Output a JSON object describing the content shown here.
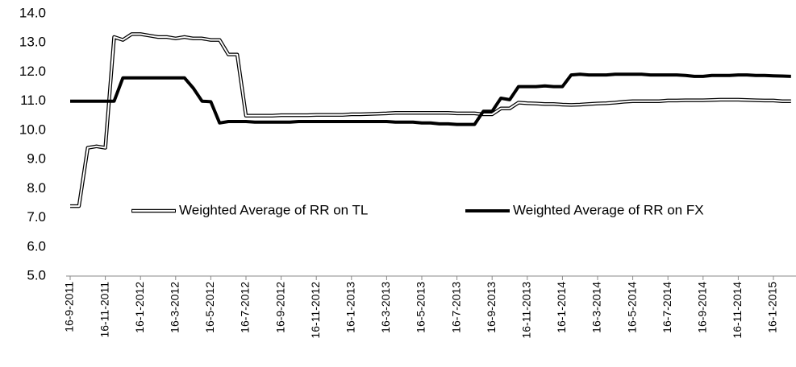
{
  "chart_data": {
    "type": "line",
    "categories": [
      "16-9-2011",
      null,
      null,
      null,
      "16-11-2011",
      null,
      null,
      null,
      "16-1-2012",
      null,
      null,
      null,
      "16-3-2012",
      null,
      null,
      null,
      "16-5-2012",
      null,
      null,
      null,
      "16-7-2012",
      null,
      null,
      null,
      "16-9-2012",
      null,
      null,
      null,
      "16-11-2012",
      null,
      null,
      null,
      "16-1-2013",
      null,
      null,
      null,
      "16-3-2013",
      null,
      null,
      null,
      "16-5-2013",
      null,
      null,
      null,
      "16-7-2013",
      null,
      null,
      null,
      "16-9-2013",
      null,
      null,
      null,
      "16-11-2013",
      null,
      null,
      null,
      "16-1-2014",
      null,
      null,
      null,
      "16-3-2014",
      null,
      null,
      null,
      "16-5-2014",
      null,
      null,
      null,
      "16-7-2014",
      null,
      null,
      null,
      "16-9-2014",
      null,
      null,
      null,
      "16-11-2014",
      null,
      null,
      null,
      "16-1-2015",
      null,
      null
    ],
    "series": [
      {
        "name": "Weighted Average of RR on TL",
        "color": "#000000",
        "style": "double",
        "values": [
          7.4,
          7.4,
          9.4,
          9.45,
          9.4,
          13.2,
          13.1,
          13.3,
          13.3,
          13.25,
          13.2,
          13.2,
          13.15,
          13.2,
          13.15,
          13.15,
          13.1,
          13.1,
          12.6,
          12.6,
          10.5,
          10.5,
          10.5,
          10.5,
          10.52,
          10.52,
          10.52,
          10.52,
          10.53,
          10.53,
          10.53,
          10.53,
          10.55,
          10.55,
          10.56,
          10.57,
          10.58,
          10.6,
          10.6,
          10.6,
          10.6,
          10.6,
          10.6,
          10.6,
          10.58,
          10.58,
          10.58,
          10.55,
          10.55,
          10.75,
          10.75,
          10.95,
          10.93,
          10.92,
          10.9,
          10.9,
          10.88,
          10.87,
          10.88,
          10.9,
          10.92,
          10.93,
          10.95,
          10.98,
          11.0,
          11.0,
          11.0,
          11.0,
          11.02,
          11.02,
          11.03,
          11.03,
          11.03,
          11.04,
          11.05,
          11.05,
          11.05,
          11.04,
          11.03,
          11.02,
          11.02,
          11.0,
          11.0
        ]
      },
      {
        "name": "Weighted Average of RR on FX",
        "color": "#000000",
        "style": "solid",
        "values": [
          11.0,
          11.0,
          11.0,
          11.0,
          11.0,
          11.0,
          11.8,
          11.8,
          11.8,
          11.8,
          11.8,
          11.8,
          11.8,
          11.8,
          11.45,
          11.0,
          10.98,
          10.25,
          10.3,
          10.3,
          10.3,
          10.28,
          10.28,
          10.28,
          10.28,
          10.28,
          10.3,
          10.3,
          10.3,
          10.3,
          10.3,
          10.3,
          10.3,
          10.3,
          10.3,
          10.3,
          10.3,
          10.28,
          10.28,
          10.28,
          10.25,
          10.25,
          10.22,
          10.22,
          10.2,
          10.2,
          10.2,
          10.65,
          10.65,
          11.1,
          11.05,
          11.5,
          11.5,
          11.5,
          11.52,
          11.5,
          11.5,
          11.9,
          11.92,
          11.9,
          11.9,
          11.9,
          11.92,
          11.92,
          11.92,
          11.92,
          11.9,
          11.9,
          11.9,
          11.9,
          11.88,
          11.85,
          11.85,
          11.88,
          11.88,
          11.88,
          11.9,
          11.9,
          11.88,
          11.88,
          11.87,
          11.86,
          11.85
        ]
      }
    ],
    "ylim": [
      5,
      14
    ],
    "yticks": [
      {
        "value": 5,
        "label": "5.0"
      },
      {
        "value": 6,
        "label": "6.0"
      },
      {
        "value": 7,
        "label": "7.0"
      },
      {
        "value": 8,
        "label": "8.0"
      },
      {
        "value": 9,
        "label": "9.0"
      },
      {
        "value": 10,
        "label": "10.0"
      },
      {
        "value": 11,
        "label": "11.0"
      },
      {
        "value": 12,
        "label": "12.0"
      },
      {
        "value": 13,
        "label": "13.0"
      },
      {
        "value": 14,
        "label": "14.0"
      }
    ],
    "grid": false,
    "legend": "center"
  }
}
